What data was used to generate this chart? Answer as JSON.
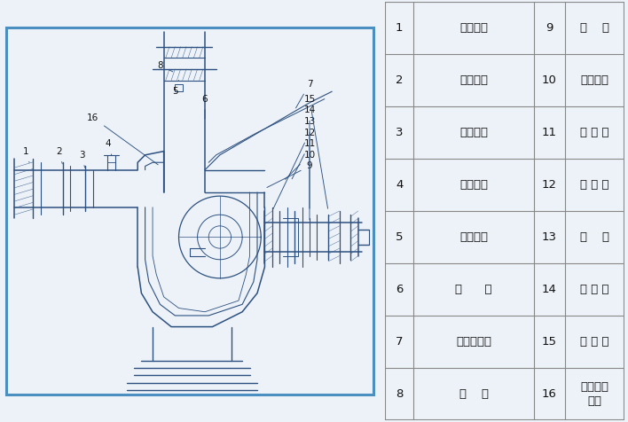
{
  "bg_color": "#edf2f8",
  "table_bg": "#dce8f5",
  "border_color": "#4a8fc0",
  "diagram_bg": "#edf2f8",
  "line_color": "#2c5080",
  "text_color": "#111111",
  "table_line_color": "#888888",
  "watermark_color": "#c8cdd8",
  "table_data": [
    [
      "1",
      "进口接管",
      "9",
      "叶    轮"
    ],
    [
      "2",
      "进口法兰",
      "10",
      "机械密封"
    ],
    [
      "3",
      "进口阀座",
      "11",
      "挡 水 圈"
    ],
    [
      "4",
      "加水阀门",
      "12",
      "轴 承 座"
    ],
    [
      "5",
      "出口接管",
      "13",
      "泵    轴"
    ],
    [
      "6",
      "泵      体",
      "14",
      "轴 承 盖"
    ],
    [
      "7",
      "气液分离管",
      "15",
      "底 盖 板"
    ],
    [
      "8",
      "后    盖",
      "16",
      "叶轮螺母\n螺栓"
    ]
  ],
  "font_size_table": 9.5,
  "font_size_label": 7.5,
  "font_size_wm": 5.5
}
